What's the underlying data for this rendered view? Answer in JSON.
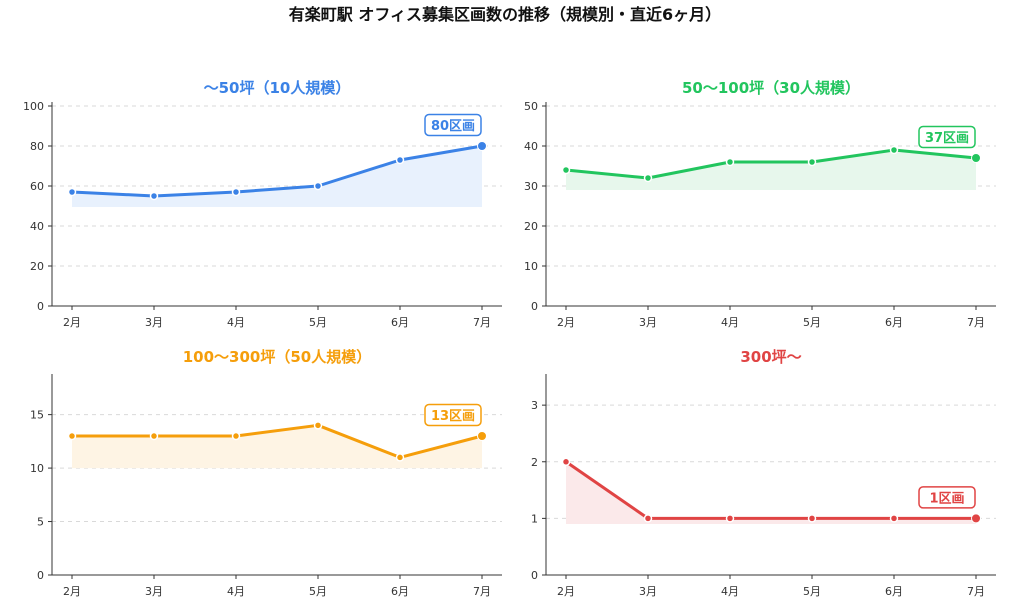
{
  "figure": {
    "title": "有楽町駅 オフィス募集区画数の推移（規模別・直近6ヶ月）"
  },
  "chart_data": [
    {
      "type": "line",
      "title": "〜50坪（10人規模）",
      "categories": [
        "2月",
        "3月",
        "4月",
        "5月",
        "6月",
        "7月"
      ],
      "series": [
        {
          "values": [
            57,
            55,
            57,
            60,
            73,
            80
          ]
        }
      ],
      "ylim": [
        0,
        102
      ],
      "yticks": [
        0,
        20,
        40,
        60,
        80,
        100
      ],
      "fill_baseline": 49.5,
      "color": "#3b82e6",
      "fill_color": "#e8f1fd",
      "annotation": "80区画",
      "grid": true
    },
    {
      "type": "line",
      "title": "50〜100坪（30人規模）",
      "categories": [
        "2月",
        "3月",
        "4月",
        "5月",
        "6月",
        "7月"
      ],
      "series": [
        {
          "values": [
            34,
            32,
            36,
            36,
            39,
            37
          ]
        }
      ],
      "ylim": [
        0,
        51
      ],
      "yticks": [
        0,
        10,
        20,
        30,
        40,
        50
      ],
      "fill_baseline": 29,
      "color": "#22c55e",
      "fill_color": "#e7f7ec",
      "annotation": "37区画",
      "grid": true
    },
    {
      "type": "line",
      "title": "100〜300坪（50人規模）",
      "categories": [
        "2月",
        "3月",
        "4月",
        "5月",
        "6月",
        "7月"
      ],
      "series": [
        {
          "values": [
            13,
            13,
            13,
            14,
            11,
            13
          ]
        }
      ],
      "ylim": [
        0,
        18.8
      ],
      "yticks": [
        0,
        5,
        10,
        15
      ],
      "fill_baseline": 10,
      "color": "#f59e0b",
      "fill_color": "#fef4e4",
      "annotation": "13区画",
      "grid": true
    },
    {
      "type": "line",
      "title": "300坪〜",
      "categories": [
        "2月",
        "3月",
        "4月",
        "5月",
        "6月",
        "7月"
      ],
      "series": [
        {
          "values": [
            2,
            1,
            1,
            1,
            1,
            1
          ]
        }
      ],
      "ylim": [
        0,
        3.55
      ],
      "yticks": [
        0,
        1,
        2,
        3
      ],
      "fill_baseline": 0.9,
      "color": "#e04444",
      "fill_color": "#fbe9ea",
      "annotation": "1区画",
      "grid": true
    }
  ]
}
